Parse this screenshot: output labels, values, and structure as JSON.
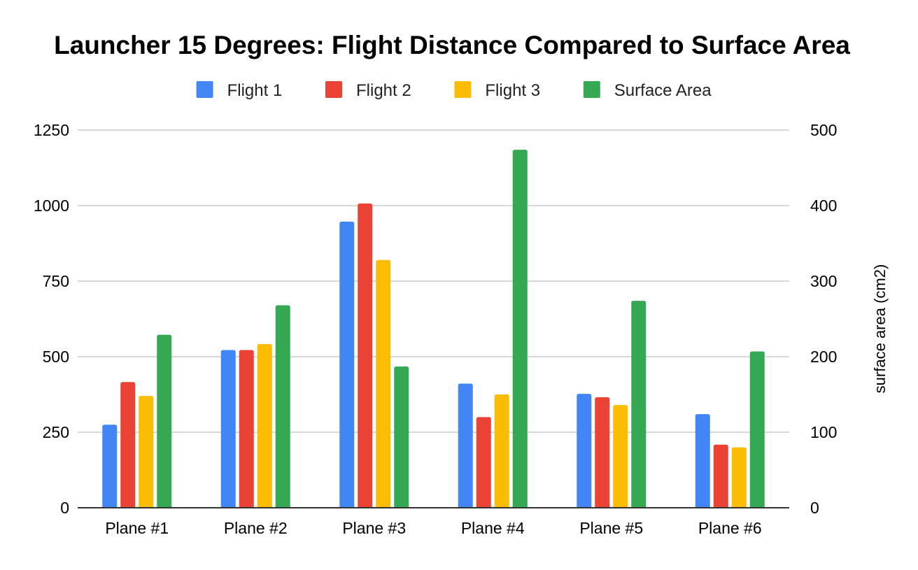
{
  "chart_data": {
    "type": "bar",
    "title": "Launcher 15 Degrees: Flight Distance Compared to Surface Area",
    "categories": [
      "Plane #1",
      "Plane #2",
      "Plane #3",
      "Plane #4",
      "Plane #5",
      "Plane #6"
    ],
    "series": [
      {
        "name": "Flight 1",
        "axis": "left",
        "color": "#4285f4",
        "values": [
          275,
          522,
          947,
          411,
          377,
          310
        ]
      },
      {
        "name": "Flight 2",
        "axis": "left",
        "color": "#ea4335",
        "values": [
          416,
          522,
          1007,
          300,
          366,
          209
        ]
      },
      {
        "name": "Flight 3",
        "axis": "left",
        "color": "#fbbc04",
        "values": [
          370,
          542,
          820,
          375,
          340,
          200
        ]
      },
      {
        "name": "Surface Area",
        "axis": "right",
        "color": "#34a853",
        "values": [
          229,
          268,
          187,
          474,
          274,
          207
        ]
      }
    ],
    "y_left": {
      "label": "",
      "ylim": [
        0,
        1250
      ],
      "ticks": [
        "0",
        "250",
        "500",
        "750",
        "1000",
        "1250"
      ]
    },
    "y_right": {
      "label": "surface area (cm2)",
      "ylim": [
        0,
        500
      ],
      "ticks": [
        "0",
        "100",
        "200",
        "300",
        "400",
        "500"
      ]
    },
    "legend": {
      "placement": "top"
    },
    "grid": true
  }
}
